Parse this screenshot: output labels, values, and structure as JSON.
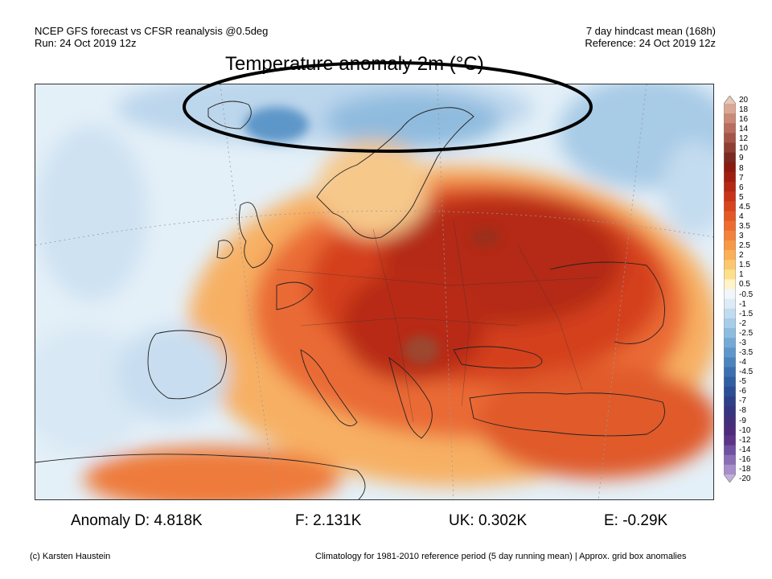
{
  "header": {
    "left_line1": "NCEP GFS forecast vs CFSR reanalysis @0.5deg",
    "left_line2": "Run: 24 Oct 2019 12z",
    "right_line1": "7 day hindcast mean (168h)",
    "right_line2": "Reference: 24 Oct 2019 12z"
  },
  "map": {
    "title": "Temperature anomaly 2m (°C)",
    "region": "Europe",
    "annotation_shape": "black ellipse around Iceland and Scandinavia"
  },
  "colorbar": {
    "labels": [
      "20",
      "18",
      "16",
      "14",
      "12",
      "10",
      "9",
      "8",
      "7",
      "6",
      "5",
      "4.5",
      "4",
      "3.5",
      "3",
      "2.5",
      "2",
      "1.5",
      "1",
      "0.5",
      "-0.5",
      "-1",
      "-1.5",
      "-2",
      "-2.5",
      "-3",
      "-3.5",
      "-4",
      "-4.5",
      "-5",
      "-6",
      "-7",
      "-8",
      "-9",
      "-10",
      "-12",
      "-14",
      "-16",
      "-18",
      "-20"
    ],
    "colors": [
      "#e8c8b8",
      "#d9a896",
      "#c98a78",
      "#b86e5e",
      "#a55548",
      "#8f3e34",
      "#7a2a22",
      "#8b1a10",
      "#a01e10",
      "#b42814",
      "#c8341a",
      "#d8441e",
      "#e45828",
      "#ec6c32",
      "#f2823c",
      "#f69848",
      "#f9b058",
      "#fbc870",
      "#fde08c",
      "#fff3c8",
      "#f2f6fa",
      "#dcebf5",
      "#c2dcef",
      "#a8cde8",
      "#8ebcdf",
      "#76aad5",
      "#6097ca",
      "#4c84be",
      "#3c70b0",
      "#325ea2",
      "#2c4e94",
      "#2e4088",
      "#37357e",
      "#42307a",
      "#4e2c7c",
      "#5e3488",
      "#7050a0",
      "#8a6eb6",
      "#a68ec8",
      "#c2b0dc"
    ]
  },
  "stats": {
    "d": "Anomaly D: 4.818K",
    "f": "F: 2.131K",
    "uk": "UK: 0.302K",
    "e": "E: -0.29K"
  },
  "footer": {
    "left": "(c) Karsten Haustein",
    "right": "Climatology for 1981-2010 reference period (5 day running mean) | Approx. grid box anomalies"
  }
}
